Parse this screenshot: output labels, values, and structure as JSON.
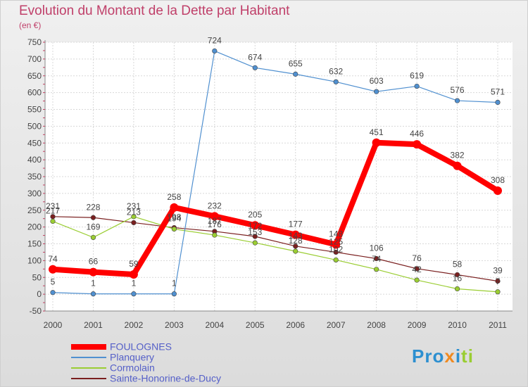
{
  "chart_data": {
    "type": "line",
    "title": "Evolution du Montant de la Dette par Habitant",
    "subtitle": "(en €)",
    "xlabel": "",
    "ylabel": "",
    "categories": [
      "2000",
      "2001",
      "2002",
      "2003",
      "2004",
      "2005",
      "2006",
      "2007",
      "2008",
      "2009",
      "2010",
      "2011"
    ],
    "ylim": [
      -50,
      750
    ],
    "yticks": [
      -50,
      0,
      50,
      100,
      150,
      200,
      250,
      300,
      350,
      400,
      450,
      500,
      550,
      600,
      650,
      700,
      750
    ],
    "grid": true,
    "legend_position": "bottom-left",
    "series": [
      {
        "name": "Sainte-Honorine-de-Ducy",
        "color": "#7a1f1f",
        "values": [
          231,
          228,
          213,
          198,
          187,
          172,
          143,
          125,
          106,
          76,
          58,
          39
        ],
        "labels": [
          "231",
          "228",
          "213",
          "198",
          "187",
          "172",
          "143",
          "125",
          "106",
          "76",
          "58",
          "39"
        ]
      },
      {
        "name": "Cormolain",
        "color": "#9acd32",
        "values": [
          217,
          169,
          231,
          194,
          176,
          153,
          128,
          102,
          74,
          42,
          16,
          7
        ],
        "labels": [
          "217",
          "169",
          "231",
          "194",
          "176",
          "153",
          "128",
          "102",
          "74",
          "42",
          "16",
          "7"
        ]
      },
      {
        "name": "Planquery",
        "color": "#5090d0",
        "values": [
          5,
          1,
          1,
          1,
          724,
          674,
          655,
          632,
          603,
          619,
          576,
          571
        ],
        "labels": [
          "5",
          "1",
          "1",
          "1",
          "724",
          "674",
          "655",
          "632",
          "603",
          "619",
          "576",
          "571"
        ]
      },
      {
        "name": "FOULOGNES",
        "color": "#ff0000",
        "values": [
          74,
          66,
          59,
          258,
          232,
          205,
          177,
          148,
          451,
          446,
          382,
          308
        ],
        "labels": [
          "74",
          "66",
          "59",
          "258",
          "232",
          "205",
          "177",
          "148",
          "451",
          "446",
          "382",
          "308"
        ]
      }
    ]
  },
  "legend": {
    "items": [
      {
        "name": "FOULOGNES",
        "color": "#ff0000"
      },
      {
        "name": "Planquery",
        "color": "#5090d0"
      },
      {
        "name": "Cormolain",
        "color": "#9acd32"
      },
      {
        "name": "Sainte-Honorine-de-Ducy",
        "color": "#7a1f1f"
      }
    ]
  },
  "brand": {
    "p1": "Pro",
    "p2": "x",
    "p3": "i",
    "p4": "ti"
  }
}
